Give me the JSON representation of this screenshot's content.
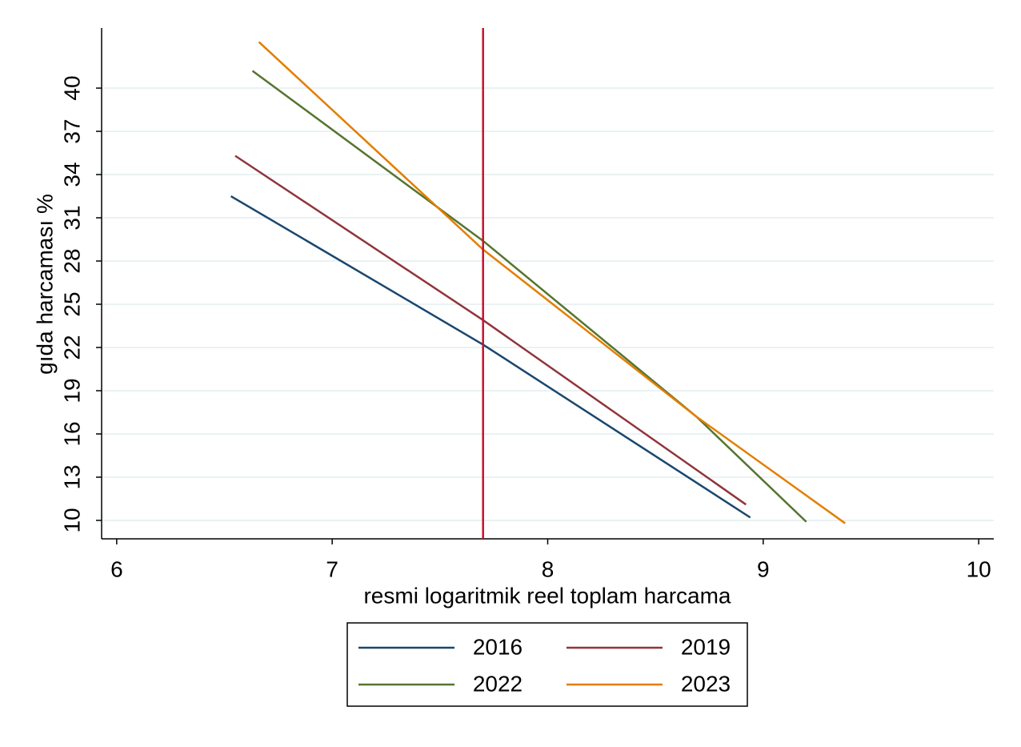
{
  "chart_data": {
    "type": "line",
    "xlabel": "resmi logaritmik reel toplam harcama",
    "ylabel": "gıda harcaması %",
    "xlim": [
      5.93,
      10.07
    ],
    "xticks": [
      6,
      7,
      8,
      9,
      10
    ],
    "ylim": [
      8.72,
      44.17
    ],
    "yticks": [
      10,
      13,
      16,
      19,
      22,
      25,
      28,
      31,
      34,
      37,
      40
    ],
    "grid": true,
    "reference_line": {
      "x": 7.7,
      "color": "#c8102e"
    },
    "series": [
      {
        "name": "2016",
        "color": "#1a476f",
        "x": [
          6.53,
          7.7,
          8.94
        ],
        "values": [
          32.5,
          22.2,
          10.2
        ]
      },
      {
        "name": "2019",
        "color": "#90353b",
        "x": [
          6.55,
          7.7,
          8.92
        ],
        "values": [
          35.3,
          23.9,
          11.1
        ]
      },
      {
        "name": "2022",
        "color": "#55752f",
        "x": [
          6.63,
          7.7,
          8.69,
          9.2
        ],
        "values": [
          41.2,
          29.4,
          17.2,
          9.9
        ]
      },
      {
        "name": "2023",
        "color": "#e37e00",
        "x": [
          6.66,
          7.7,
          8.69,
          9.38
        ],
        "values": [
          43.2,
          28.8,
          17.2,
          9.8
        ]
      }
    ]
  }
}
